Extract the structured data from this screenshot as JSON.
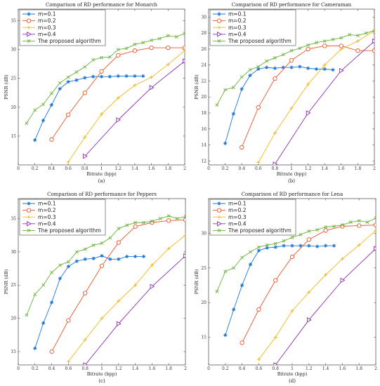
{
  "colors": [
    "#1f77d4",
    "#e8572a",
    "#f0b81e",
    "#8a2fb0",
    "#6ab23a"
  ],
  "chart_data": [
    {
      "type": "line",
      "title": "Comparison of RD performance for Monarch",
      "xlabel": "Bitrate (bpp)",
      "ylabel": "PSNR (dB)",
      "caption": "(a)",
      "xlim": [
        0,
        2
      ],
      "ylim": [
        10,
        37
      ],
      "xticks": [
        0,
        0.2,
        0.4,
        0.6,
        0.8,
        1,
        1.2,
        1.4,
        1.6,
        1.8,
        2
      ],
      "xtick_labels": [
        "0",
        "0.2",
        "0.4",
        "0.6",
        "0.8",
        "1",
        "1.2",
        "1.4",
        "1.6",
        "1.8",
        "2"
      ],
      "yticks": [
        15,
        20,
        25,
        30,
        35
      ],
      "ytick_labels": [
        "15",
        "20",
        "25",
        "30",
        "35"
      ],
      "legend_position": "top-left",
      "series": [
        {
          "name": "m=0.1",
          "marker": "star",
          "x": [
            0.2,
            0.3,
            0.4,
            0.5,
            0.6,
            0.7,
            0.8,
            0.9,
            1.0,
            1.1,
            1.2,
            1.3,
            1.4,
            1.5
          ],
          "y": [
            14.3,
            17.7,
            20.4,
            23.2,
            24.4,
            24.7,
            25.1,
            25.3,
            25.3,
            25.3,
            25.4,
            25.4,
            25.4,
            25.4
          ]
        },
        {
          "name": "m=0.2",
          "marker": "circle",
          "x": [
            0.4,
            0.6,
            0.8,
            1.0,
            1.2,
            1.4,
            1.6,
            1.8,
            2.0
          ],
          "y": [
            14.4,
            18.7,
            22.5,
            26.2,
            29.0,
            29.8,
            30.3,
            30.3,
            30.3
          ]
        },
        {
          "name": "m=0.3",
          "marker": "plus",
          "x": [
            0.6,
            0.8,
            1.0,
            1.2,
            1.4,
            1.6,
            1.8,
            2.0
          ],
          "y": [
            10.5,
            14.8,
            18.8,
            21.6,
            23.8,
            25.2,
            27.4,
            29.8
          ]
        },
        {
          "name": "m=0.4",
          "marker": "triangle-right",
          "x": [
            0.8,
            1.2,
            1.6,
            2.0
          ],
          "y": [
            11.5,
            17.8,
            23.4,
            28.0
          ]
        },
        {
          "name": "The proposed algorithm",
          "marker": "x",
          "x": [
            0.1,
            0.2,
            0.3,
            0.4,
            0.5,
            0.6,
            0.7,
            0.8,
            0.9,
            1.0,
            1.1,
            1.2,
            1.3,
            1.4,
            1.5,
            1.6,
            1.7,
            1.8,
            1.9,
            2.0
          ],
          "y": [
            17.2,
            19.5,
            20.5,
            22.4,
            24.2,
            25.2,
            26.1,
            27.0,
            28.2,
            28.6,
            28.7,
            30.0,
            30.2,
            30.9,
            31.2,
            31.6,
            31.9,
            32.4,
            32.2,
            32.8
          ]
        }
      ]
    },
    {
      "type": "line",
      "title": "Comparison of RD performance for Cameraman",
      "xlabel": "Bitrate (bpp)",
      "ylabel": "PSNR (dB)",
      "caption": "(b)",
      "xlim": [
        0,
        2
      ],
      "ylim": [
        11.5,
        31
      ],
      "xticks": [
        0,
        0.2,
        0.4,
        0.6,
        0.8,
        1,
        1.2,
        1.4,
        1.6,
        1.8,
        2
      ],
      "xtick_labels": [
        "0",
        "0.2",
        "0.4",
        "0.6",
        "0.8",
        "1",
        "1.2",
        "1.4",
        "1.6",
        "1.8",
        "2"
      ],
      "yticks": [
        12,
        14,
        16,
        18,
        20,
        22,
        24,
        26,
        28,
        30
      ],
      "ytick_labels": [
        "12",
        "14",
        "16",
        "18",
        "20",
        "22",
        "24",
        "26",
        "28",
        "30"
      ],
      "legend_position": "top-left",
      "series": [
        {
          "name": "m=0.1",
          "marker": "star",
          "x": [
            0.2,
            0.3,
            0.4,
            0.5,
            0.6,
            0.7,
            0.8,
            0.9,
            1.0,
            1.1,
            1.2,
            1.3,
            1.4,
            1.5
          ],
          "y": [
            14.2,
            17.9,
            21.0,
            22.7,
            23.5,
            23.7,
            23.6,
            23.7,
            23.7,
            23.8,
            23.6,
            23.5,
            23.5,
            23.4
          ]
        },
        {
          "name": "m=0.2",
          "marker": "circle",
          "x": [
            0.4,
            0.6,
            0.8,
            1.0,
            1.2,
            1.4,
            1.6,
            1.8,
            2.0
          ],
          "y": [
            13.7,
            18.7,
            22.3,
            24.6,
            26.0,
            26.4,
            26.4,
            25.8,
            25.8
          ]
        },
        {
          "name": "m=0.3",
          "marker": "plus",
          "x": [
            0.6,
            0.8,
            1.0,
            1.2,
            1.4,
            1.6,
            1.8,
            2.0
          ],
          "y": [
            11.8,
            15.5,
            18.6,
            21.6,
            24.0,
            26.0,
            27.0,
            28.3
          ]
        },
        {
          "name": "m=0.4",
          "marker": "triangle-right",
          "x": [
            0.8,
            1.2,
            1.6,
            2.0
          ],
          "y": [
            11.6,
            18.0,
            23.3,
            27.0
          ]
        },
        {
          "name": "The proposed algorithm",
          "marker": "x",
          "x": [
            0.1,
            0.2,
            0.3,
            0.4,
            0.5,
            0.6,
            0.7,
            0.8,
            0.9,
            1.0,
            1.1,
            1.2,
            1.3,
            1.4,
            1.5,
            1.6,
            1.7,
            1.8,
            1.9,
            2.0
          ],
          "y": [
            19.0,
            20.9,
            21.2,
            22.5,
            23.4,
            23.8,
            24.5,
            24.9,
            25.3,
            25.8,
            26.1,
            26.5,
            26.8,
            27.0,
            27.2,
            27.4,
            27.8,
            27.7,
            28.0,
            28.3
          ]
        }
      ]
    },
    {
      "type": "line",
      "title": "Comparison of RD performance for Peppers",
      "xlabel": "Bitrate (bpp)",
      "ylabel": "PSNR (dB)",
      "caption": "(c)",
      "xlim": [
        0,
        2
      ],
      "ylim": [
        13,
        38
      ],
      "xticks": [
        0,
        0.2,
        0.4,
        0.6,
        0.8,
        1,
        1.2,
        1.4,
        1.6,
        1.8,
        2
      ],
      "xtick_labels": [
        "0",
        "0.2",
        "0.4",
        "0.6",
        "0.8",
        "1",
        "1.2",
        "1.4",
        "1.6",
        "1.8",
        "2"
      ],
      "yticks": [
        15,
        20,
        25,
        30,
        35
      ],
      "ytick_labels": [
        "15",
        "20",
        "25",
        "30",
        "35"
      ],
      "legend_position": "top-left",
      "series": [
        {
          "name": "m=0.1",
          "marker": "star",
          "x": [
            0.2,
            0.3,
            0.4,
            0.5,
            0.6,
            0.7,
            0.8,
            0.9,
            1.0,
            1.1,
            1.2,
            1.3,
            1.4,
            1.5
          ],
          "y": [
            15.5,
            19.3,
            22.4,
            26.0,
            27.8,
            28.6,
            28.9,
            29.0,
            29.4,
            28.9,
            28.9,
            29.3,
            29.3,
            29.3
          ]
        },
        {
          "name": "m=0.2",
          "marker": "circle",
          "x": [
            0.4,
            0.6,
            0.8,
            1.0,
            1.2,
            1.4,
            1.6,
            1.8,
            2.0
          ],
          "y": [
            15.0,
            19.7,
            23.8,
            27.9,
            31.4,
            33.8,
            34.4,
            34.7,
            34.8
          ]
        },
        {
          "name": "m=0.3",
          "marker": "plus",
          "x": [
            0.6,
            0.8,
            1.0,
            1.2,
            1.4,
            1.6,
            1.8,
            2.0
          ],
          "y": [
            13.5,
            16.8,
            20.0,
            22.6,
            25.0,
            28.0,
            30.5,
            32.5
          ]
        },
        {
          "name": "m=0.4",
          "marker": "triangle-right",
          "x": [
            0.8,
            1.2,
            1.6,
            2.0
          ],
          "y": [
            13.0,
            19.2,
            24.8,
            29.4
          ]
        },
        {
          "name": "The proposed algorithm",
          "marker": "x",
          "x": [
            0.1,
            0.2,
            0.3,
            0.4,
            0.5,
            0.6,
            0.7,
            0.8,
            0.9,
            1.0,
            1.1,
            1.2,
            1.3,
            1.4,
            1.5,
            1.6,
            1.7,
            1.8,
            1.9,
            2.0
          ],
          "y": [
            20.5,
            23.6,
            25.0,
            26.9,
            28.0,
            28.5,
            30.0,
            30.4,
            31.0,
            31.3,
            32.1,
            33.5,
            34.0,
            34.4,
            34.4,
            34.6,
            35.0,
            35.4,
            35.0,
            35.3
          ]
        }
      ]
    },
    {
      "type": "line",
      "title": "Comparison of RD performance for Lena",
      "xlabel": "Bitrate (bpp)",
      "ylabel": "PSNR (dB)",
      "caption": "(d)",
      "xlim": [
        0,
        2
      ],
      "ylim": [
        11,
        35
      ],
      "xticks": [
        0,
        0.2,
        0.4,
        0.6,
        0.8,
        1,
        1.2,
        1.4,
        1.6,
        1.8,
        2
      ],
      "xtick_labels": [
        "0",
        "0.2",
        "0.4",
        "0.6",
        "0.8",
        "1",
        "1.2",
        "1.4",
        "1.6",
        "1.8",
        "2"
      ],
      "yticks": [
        15,
        20,
        25,
        30
      ],
      "ytick_labels": [
        "15",
        "20",
        "25",
        "30"
      ],
      "legend_position": "top-left",
      "series": [
        {
          "name": "m=0.1",
          "marker": "star",
          "x": [
            0.2,
            0.3,
            0.4,
            0.5,
            0.6,
            0.7,
            0.8,
            0.9,
            1.0,
            1.1,
            1.2,
            1.3,
            1.4,
            1.5
          ],
          "y": [
            15.3,
            19.0,
            22.5,
            25.5,
            27.5,
            27.9,
            28.0,
            28.2,
            28.2,
            28.2,
            28.2,
            28.1,
            28.2,
            28.2
          ]
        },
        {
          "name": "m=0.2",
          "marker": "circle",
          "x": [
            0.4,
            0.6,
            0.8,
            1.0,
            1.2,
            1.4,
            1.6,
            1.8,
            2.0
          ],
          "y": [
            14.2,
            19.0,
            23.2,
            26.6,
            29.1,
            30.4,
            31.0,
            31.1,
            31.2
          ]
        },
        {
          "name": "m=0.3",
          "marker": "plus",
          "x": [
            0.6,
            0.8,
            1.0,
            1.2,
            1.4,
            1.6,
            1.8,
            2.0
          ],
          "y": [
            11.8,
            15.0,
            18.8,
            21.5,
            24.0,
            26.3,
            28.3,
            30.4
          ]
        },
        {
          "name": "m=0.4",
          "marker": "triangle-right",
          "x": [
            0.8,
            1.2,
            1.6,
            2.0
          ],
          "y": [
            11.0,
            17.5,
            23.2,
            27.8
          ]
        },
        {
          "name": "The proposed algorithm",
          "marker": "x",
          "x": [
            0.1,
            0.2,
            0.3,
            0.4,
            0.5,
            0.6,
            0.7,
            0.8,
            0.9,
            1.0,
            1.1,
            1.2,
            1.3,
            1.4,
            1.5,
            1.6,
            1.7,
            1.8,
            1.9,
            2.0
          ],
          "y": [
            21.6,
            24.5,
            25.0,
            26.5,
            27.3,
            28.0,
            28.3,
            28.5,
            28.9,
            29.4,
            29.8,
            30.3,
            30.5,
            30.9,
            31.0,
            31.2,
            31.6,
            31.8,
            31.6,
            32.2
          ]
        }
      ]
    }
  ]
}
